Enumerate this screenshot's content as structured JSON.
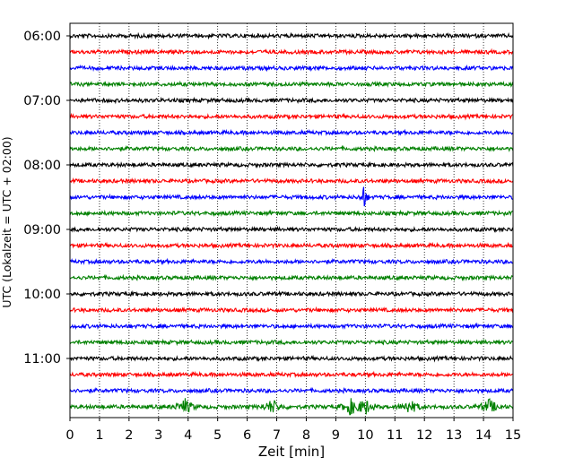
{
  "chart_data": {
    "type": "line",
    "title": "",
    "xlabel": "Zeit  [min]",
    "ylabel": "UTC (Lokalzeit = UTC + 02:00)",
    "xlim": [
      0,
      15
    ],
    "x_ticks": [
      "0",
      "1",
      "2",
      "3",
      "4",
      "5",
      "6",
      "7",
      "8",
      "9",
      "10",
      "11",
      "12",
      "13",
      "14",
      "15"
    ],
    "y_ticks": [
      "06:00",
      "07:00",
      "08:00",
      "09:00",
      "10:00",
      "11:00"
    ],
    "trace_interval_min": 15,
    "grid": "vertical dotted",
    "colors_cycle": [
      "#000000",
      "#ff0000",
      "#0000ff",
      "#008000"
    ],
    "traces": [
      {
        "start": "06:00",
        "color": "#000000"
      },
      {
        "start": "06:15",
        "color": "#ff0000"
      },
      {
        "start": "06:30",
        "color": "#0000ff"
      },
      {
        "start": "06:45",
        "color": "#008000"
      },
      {
        "start": "07:00",
        "color": "#000000"
      },
      {
        "start": "07:15",
        "color": "#ff0000"
      },
      {
        "start": "07:30",
        "color": "#0000ff"
      },
      {
        "start": "07:45",
        "color": "#008000"
      },
      {
        "start": "08:00",
        "color": "#000000"
      },
      {
        "start": "08:15",
        "color": "#ff0000"
      },
      {
        "start": "08:30",
        "color": "#0000ff",
        "events": [
          {
            "t": 9.95,
            "amp": "large"
          }
        ]
      },
      {
        "start": "08:45",
        "color": "#008000"
      },
      {
        "start": "09:00",
        "color": "#000000"
      },
      {
        "start": "09:15",
        "color": "#ff0000"
      },
      {
        "start": "09:30",
        "color": "#0000ff"
      },
      {
        "start": "09:45",
        "color": "#008000"
      },
      {
        "start": "10:00",
        "color": "#000000"
      },
      {
        "start": "10:15",
        "color": "#ff0000"
      },
      {
        "start": "10:30",
        "color": "#0000ff"
      },
      {
        "start": "10:45",
        "color": "#008000"
      },
      {
        "start": "11:00",
        "color": "#000000"
      },
      {
        "start": "11:15",
        "color": "#ff0000"
      },
      {
        "start": "11:30",
        "color": "#0000ff"
      },
      {
        "start": "11:45",
        "color": "#008000",
        "events": [
          {
            "t": 3.9,
            "amp": "medium"
          },
          {
            "t": 6.85,
            "amp": "medium"
          },
          {
            "t": 9.5,
            "amp": "medium"
          },
          {
            "t": 10.0,
            "amp": "medium"
          },
          {
            "t": 11.5,
            "amp": "medium"
          },
          {
            "t": 14.2,
            "amp": "medium"
          }
        ]
      }
    ]
  }
}
